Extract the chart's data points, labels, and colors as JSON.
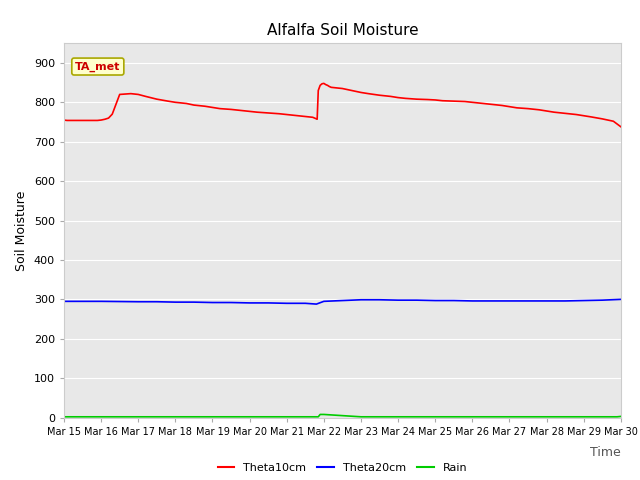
{
  "title": "Alfalfa Soil Moisture",
  "xlabel": "Time",
  "ylabel": "Soil Moisture",
  "annotation": "TA_met",
  "ylim": [
    0,
    950
  ],
  "yticks": [
    0,
    100,
    200,
    300,
    400,
    500,
    600,
    700,
    800,
    900
  ],
  "bg_color": "#e8e8e8",
  "fig_color": "#ffffff",
  "legend_items": [
    {
      "label": "Theta10cm",
      "color": "#ff0000"
    },
    {
      "label": "Theta20cm",
      "color": "#0000ff"
    },
    {
      "label": "Rain",
      "color": "#00cc00"
    }
  ],
  "theta10_x": [
    0,
    0.08,
    0.15,
    0.3,
    0.5,
    0.7,
    0.9,
    1.0,
    1.1,
    1.2,
    1.3,
    1.5,
    1.8,
    2.0,
    2.2,
    2.5,
    2.8,
    3.0,
    3.3,
    3.5,
    3.8,
    4.0,
    4.2,
    4.5,
    4.8,
    5.0,
    5.2,
    5.5,
    5.8,
    6.0,
    6.2,
    6.5,
    6.7,
    6.75,
    6.8,
    6.82,
    6.85,
    6.9,
    6.95,
    7.0,
    7.05,
    7.1,
    7.15,
    7.2,
    7.3,
    7.4,
    7.5,
    7.6,
    7.7,
    7.8,
    7.9,
    8.0,
    8.2,
    8.5,
    8.8,
    9.0,
    9.2,
    9.5,
    9.8,
    10.0,
    10.2,
    10.5,
    10.8,
    11.0,
    11.2,
    11.5,
    11.8,
    12.0,
    12.2,
    12.5,
    12.8,
    13.0,
    13.2,
    13.5,
    13.8,
    14.0,
    14.2,
    14.5,
    14.8,
    15.0
  ],
  "theta10_y": [
    755,
    754,
    754,
    754,
    754,
    754,
    754,
    755,
    757,
    760,
    770,
    820,
    822,
    820,
    815,
    808,
    803,
    800,
    797,
    793,
    790,
    787,
    784,
    782,
    779,
    777,
    775,
    773,
    771,
    769,
    767,
    764,
    762,
    760,
    758,
    757,
    830,
    843,
    847,
    848,
    845,
    843,
    840,
    838,
    837,
    836,
    835,
    833,
    831,
    829,
    827,
    825,
    822,
    818,
    815,
    812,
    810,
    808,
    807,
    806,
    804,
    803,
    802,
    800,
    798,
    795,
    792,
    789,
    786,
    784,
    781,
    778,
    775,
    772,
    769,
    766,
    763,
    758,
    752,
    738
  ],
  "theta20_x": [
    0,
    1,
    2,
    2.5,
    3,
    3.5,
    4,
    4.5,
    5,
    5.5,
    6,
    6.5,
    6.8,
    7.0,
    7.5,
    8,
    8.5,
    9,
    9.5,
    10,
    10.5,
    11,
    11.5,
    12,
    12.5,
    13,
    13.5,
    14,
    14.5,
    15
  ],
  "theta20_y": [
    295,
    295,
    294,
    294,
    293,
    293,
    292,
    292,
    291,
    291,
    290,
    290,
    288,
    295,
    297,
    299,
    299,
    298,
    298,
    297,
    297,
    296,
    296,
    296,
    296,
    296,
    296,
    297,
    298,
    300
  ],
  "rain_x": [
    0,
    1,
    2,
    3,
    4,
    5,
    6,
    6.85,
    6.9,
    7.0,
    8,
    9,
    10,
    11,
    12,
    13,
    14,
    14.9,
    15
  ],
  "rain_y": [
    2,
    2,
    2,
    2,
    2,
    2,
    2,
    2,
    8,
    8,
    2,
    2,
    2,
    2,
    2,
    2,
    2,
    2,
    3
  ]
}
